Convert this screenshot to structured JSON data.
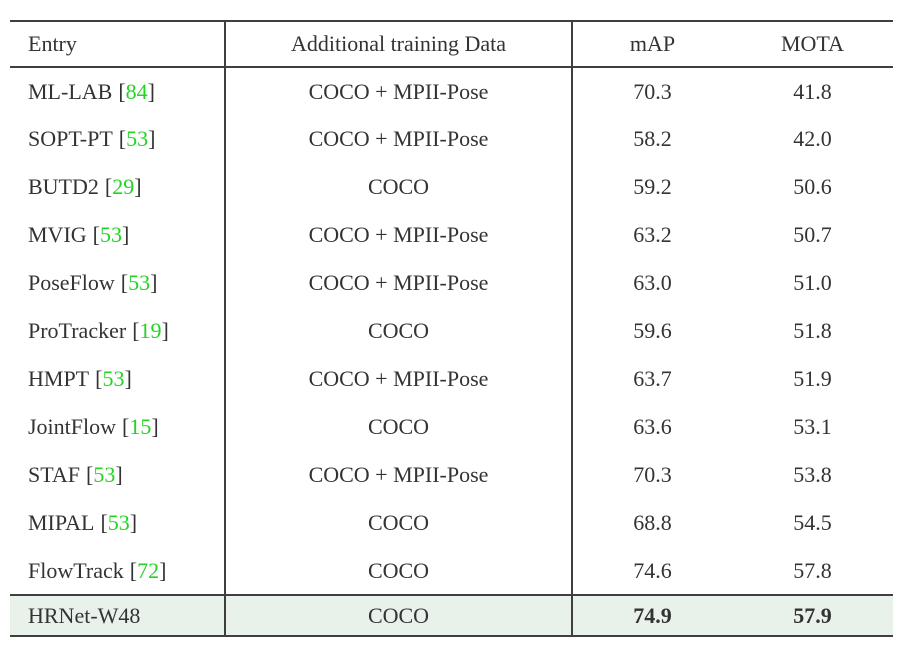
{
  "colors": {
    "text": "#333333",
    "border": "#3f3f3f",
    "citation_green": "#22d422",
    "highlight_row": "#e9f2ea",
    "background": "#ffffff"
  },
  "table": {
    "headers": {
      "entry": "Entry",
      "training_data": "Additional training Data",
      "map": "mAP",
      "mota": "MOTA"
    },
    "rows": [
      {
        "entry": "ML-LAB",
        "cite": "84",
        "training_data": "COCO + MPII-Pose",
        "map": "70.3",
        "mota": "41.8",
        "highlight": false,
        "bold": false
      },
      {
        "entry": "SOPT-PT",
        "cite": "53",
        "training_data": "COCO + MPII-Pose",
        "map": "58.2",
        "mota": "42.0",
        "highlight": false,
        "bold": false
      },
      {
        "entry": "BUTD2",
        "cite": "29",
        "training_data": "COCO",
        "map": "59.2",
        "mota": "50.6",
        "highlight": false,
        "bold": false
      },
      {
        "entry": "MVIG",
        "cite": "53",
        "training_data": "COCO + MPII-Pose",
        "map": "63.2",
        "mota": "50.7",
        "highlight": false,
        "bold": false
      },
      {
        "entry": "PoseFlow",
        "cite": "53",
        "training_data": "COCO + MPII-Pose",
        "map": "63.0",
        "mota": "51.0",
        "highlight": false,
        "bold": false
      },
      {
        "entry": "ProTracker",
        "cite": "19",
        "training_data": "COCO",
        "map": "59.6",
        "mota": "51.8",
        "highlight": false,
        "bold": false
      },
      {
        "entry": "HMPT",
        "cite": "53",
        "training_data": "COCO + MPII-Pose",
        "map": "63.7",
        "mota": "51.9",
        "highlight": false,
        "bold": false
      },
      {
        "entry": "JointFlow",
        "cite": "15",
        "training_data": "COCO",
        "map": "63.6",
        "mota": "53.1",
        "highlight": false,
        "bold": false
      },
      {
        "entry": "STAF",
        "cite": "53",
        "training_data": "COCO + MPII-Pose",
        "map": "70.3",
        "mota": "53.8",
        "highlight": false,
        "bold": false
      },
      {
        "entry": "MIPAL",
        "cite": "53",
        "training_data": "COCO",
        "map": "68.8",
        "mota": "54.5",
        "highlight": false,
        "bold": false
      },
      {
        "entry": "FlowTrack",
        "cite": "72",
        "training_data": "COCO",
        "map": "74.6",
        "mota": "57.8",
        "highlight": false,
        "bold": false
      },
      {
        "entry": "HRNet-W48",
        "cite": null,
        "training_data": "COCO",
        "map": "74.9",
        "mota": "57.9",
        "highlight": true,
        "bold": true
      }
    ]
  }
}
